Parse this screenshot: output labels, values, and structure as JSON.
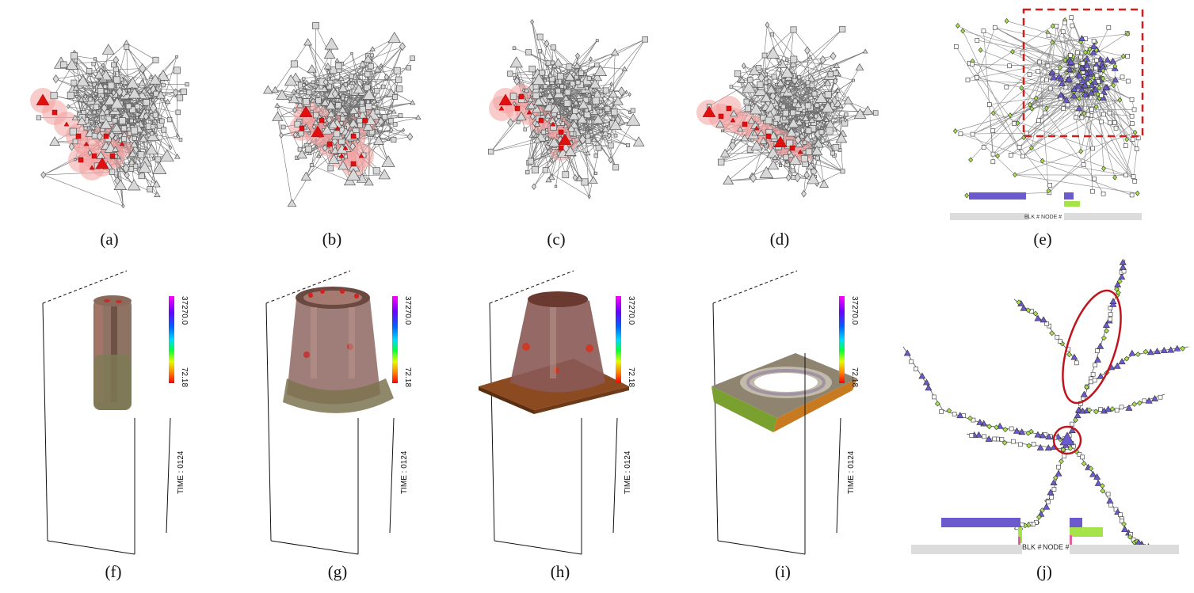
{
  "captions": [
    "(a)",
    "(b)",
    "(c)",
    "(d)",
    "(e)",
    "(f)",
    "(g)",
    "(h)",
    "(i)",
    "(j)"
  ],
  "volume_panels": {
    "colorbar_max": "37270.0",
    "colorbar_min": "72.18",
    "time_label": "TIME : 0124"
  },
  "graph_e": {
    "axis_label": "BLK # NODE #"
  },
  "graph_j": {
    "axis_label_blk": "BLK #",
    "axis_label_node": "NODE #"
  },
  "colors": {
    "highlight_fill": "#f4a3a3",
    "highlight_mark": "#e01010",
    "purple_node": "#6a5acd",
    "green_node": "#a6e34a",
    "pink_node": "#e060a0",
    "annotation_red": "#c0141c",
    "node_gray": "#d8d8d8"
  }
}
